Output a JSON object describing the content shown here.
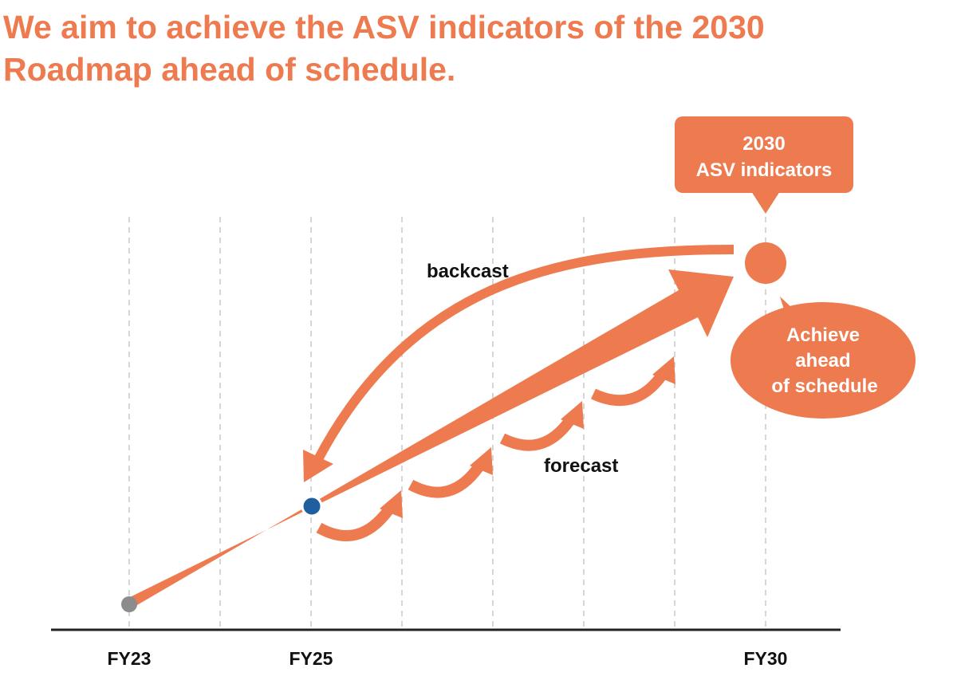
{
  "headline": {
    "line1": "We aim to achieve the ASV indicators of the 2030",
    "line2": "Roadmap ahead of schedule."
  },
  "axis": {
    "ticks": [
      "FY23",
      "FY25",
      "FY30"
    ]
  },
  "callouts": {
    "target_line1": "2030",
    "target_line2": "ASV indicators",
    "achieve_line1": "Achieve",
    "achieve_line2": "ahead",
    "achieve_line3": "of schedule"
  },
  "labels": {
    "backcast": "backcast",
    "forecast": "forecast"
  },
  "colors": {
    "accent": "#ee7a4f",
    "current_point": "#1f5fa0",
    "start_point": "#8c8c8c",
    "axis": "#222222",
    "gridline": "#bbbbbb"
  }
}
